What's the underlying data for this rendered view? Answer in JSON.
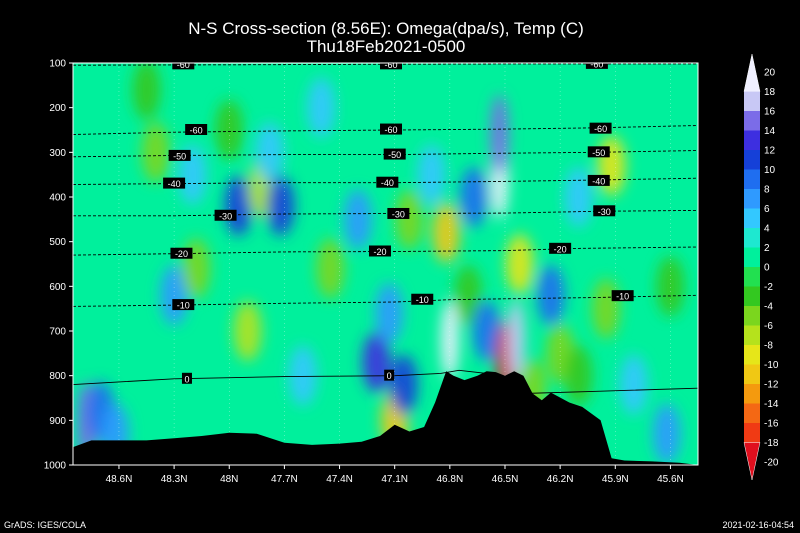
{
  "chart_data": {
    "type": "heatmap",
    "title": "N-S Cross-section (8.56E): Omega(dpa/s), Temp (C)",
    "subtitle": "Thu18Feb2021-0500",
    "xlabel": "",
    "ylabel": "",
    "x_ticks": [
      "48.6N",
      "48.3N",
      "48N",
      "47.7N",
      "47.4N",
      "47.1N",
      "46.8N",
      "46.5N",
      "46.2N",
      "45.9N",
      "45.6N"
    ],
    "x_range": [
      48.85,
      45.45
    ],
    "y_ticks": [
      100,
      200,
      300,
      400,
      500,
      600,
      700,
      800,
      900,
      1000
    ],
    "y_range": [
      100,
      1000
    ],
    "y_inverted": true,
    "grid": true,
    "colorbar": {
      "placement": "right",
      "levels": [
        20,
        18,
        16,
        14,
        12,
        10,
        8,
        6,
        4,
        2,
        0,
        -2,
        -4,
        -6,
        -8,
        -10,
        -12,
        -14,
        -16,
        -18,
        -20
      ],
      "colors": [
        "#f0f0ff",
        "#c8c8f5",
        "#7b6ce8",
        "#3d2fe0",
        "#1540d8",
        "#1f6ef0",
        "#2f9aff",
        "#33c8ff",
        "#1ee8d0",
        "#00f09c",
        "#22e050",
        "#33c820",
        "#7bd61e",
        "#b5e21c",
        "#e6e619",
        "#f0c814",
        "#f49a0e",
        "#f46814",
        "#f03a14",
        "#e00f1e"
      ]
    },
    "temperature_contours": [
      {
        "label": "-60",
        "level": -60,
        "points": [
          [
            48.85,
            105
          ],
          [
            48.0,
            104
          ],
          [
            47.2,
            103
          ],
          [
            46.4,
            102
          ],
          [
            45.6,
            102
          ],
          [
            45.45,
            102
          ]
        ]
      },
      {
        "label": "-60",
        "level": -60,
        "points": [
          [
            48.85,
            260
          ],
          [
            48.3,
            255
          ],
          [
            47.7,
            252
          ],
          [
            47.1,
            250
          ],
          [
            46.5,
            248
          ],
          [
            46.0,
            245
          ],
          [
            45.45,
            240
          ]
        ]
      },
      {
        "label": "-50",
        "level": -50,
        "points": [
          [
            48.85,
            310
          ],
          [
            48.3,
            307
          ],
          [
            47.7,
            305
          ],
          [
            47.1,
            305
          ],
          [
            46.5,
            302
          ],
          [
            46.0,
            300
          ],
          [
            45.45,
            296
          ]
        ]
      },
      {
        "label": "-40",
        "level": -40,
        "points": [
          [
            48.85,
            372
          ],
          [
            48.3,
            370
          ],
          [
            47.7,
            368
          ],
          [
            47.1,
            368
          ],
          [
            46.5,
            365
          ],
          [
            46.0,
            362
          ],
          [
            45.45,
            358
          ]
        ]
      },
      {
        "label": "-30",
        "level": -30,
        "points": [
          [
            48.85,
            442
          ],
          [
            48.3,
            442
          ],
          [
            47.7,
            438
          ],
          [
            47.1,
            437
          ],
          [
            46.5,
            436
          ],
          [
            46.0,
            432
          ],
          [
            45.45,
            430
          ]
        ]
      },
      {
        "label": "-20",
        "level": -20,
        "points": [
          [
            48.85,
            530
          ],
          [
            48.3,
            527
          ],
          [
            47.7,
            523
          ],
          [
            47.1,
            522
          ],
          [
            46.5,
            520
          ],
          [
            46.1,
            515
          ],
          [
            45.45,
            512
          ]
        ]
      },
      {
        "label": "-10",
        "level": -10,
        "points": [
          [
            48.85,
            645
          ],
          [
            48.3,
            642
          ],
          [
            47.7,
            638
          ],
          [
            47.1,
            635
          ],
          [
            46.8,
            630
          ],
          [
            46.5,
            628
          ],
          [
            46.0,
            625
          ],
          [
            45.45,
            620
          ]
        ]
      },
      {
        "label": "0",
        "level": 0,
        "points": [
          [
            48.85,
            820
          ],
          [
            48.3,
            807
          ],
          [
            47.7,
            802
          ],
          [
            47.1,
            800
          ],
          [
            46.85,
            795
          ],
          [
            46.75,
            788
          ],
          [
            46.6,
            795
          ],
          [
            46.4,
            840
          ],
          [
            46.0,
            835
          ],
          [
            45.45,
            828
          ]
        ]
      }
    ],
    "temperature_labels": [
      {
        "text": "-60",
        "x": 48.25,
        "y": 103
      },
      {
        "text": "-60",
        "x": 47.12,
        "y": 103
      },
      {
        "text": "-60",
        "x": 46.0,
        "y": 102
      },
      {
        "text": "-60",
        "x": 48.18,
        "y": 250
      },
      {
        "text": "-60",
        "x": 47.12,
        "y": 249
      },
      {
        "text": "-60",
        "x": 45.98,
        "y": 247
      },
      {
        "text": "-50",
        "x": 48.27,
        "y": 308
      },
      {
        "text": "-50",
        "x": 47.1,
        "y": 305
      },
      {
        "text": "-50",
        "x": 45.99,
        "y": 300
      },
      {
        "text": "-40",
        "x": 48.3,
        "y": 370
      },
      {
        "text": "-40",
        "x": 47.14,
        "y": 368
      },
      {
        "text": "-40",
        "x": 45.99,
        "y": 364
      },
      {
        "text": "-30",
        "x": 48.02,
        "y": 442
      },
      {
        "text": "-30",
        "x": 47.08,
        "y": 438
      },
      {
        "text": "-30",
        "x": 45.96,
        "y": 432
      },
      {
        "text": "-20",
        "x": 48.26,
        "y": 527
      },
      {
        "text": "-20",
        "x": 47.18,
        "y": 522
      },
      {
        "text": "-20",
        "x": 46.2,
        "y": 516
      },
      {
        "text": "-10",
        "x": 48.25,
        "y": 642
      },
      {
        "text": "-10",
        "x": 46.95,
        "y": 630
      },
      {
        "text": "-10",
        "x": 45.86,
        "y": 622
      },
      {
        "text": "0",
        "x": 48.23,
        "y": 807
      },
      {
        "text": "0",
        "x": 47.13,
        "y": 800
      }
    ],
    "omega_cells": [
      {
        "x": 48.78,
        "y": 905,
        "v": 14
      },
      {
        "x": 48.7,
        "y": 880,
        "v": 8
      },
      {
        "x": 48.62,
        "y": 930,
        "v": 6
      },
      {
        "x": 48.4,
        "y": 300,
        "v": -6
      },
      {
        "x": 48.45,
        "y": 160,
        "v": -4
      },
      {
        "x": 48.3,
        "y": 620,
        "v": 6
      },
      {
        "x": 48.2,
        "y": 350,
        "v": 4
      },
      {
        "x": 48.18,
        "y": 560,
        "v": -6
      },
      {
        "x": 48.0,
        "y": 250,
        "v": -4
      },
      {
        "x": 47.95,
        "y": 420,
        "v": 10
      },
      {
        "x": 47.9,
        "y": 700,
        "v": -8
      },
      {
        "x": 47.82,
        "y": 380,
        "v": -8
      },
      {
        "x": 47.78,
        "y": 300,
        "v": 4
      },
      {
        "x": 47.72,
        "y": 420,
        "v": 10
      },
      {
        "x": 47.6,
        "y": 800,
        "v": 4
      },
      {
        "x": 47.5,
        "y": 200,
        "v": 4
      },
      {
        "x": 47.45,
        "y": 560,
        "v": -6
      },
      {
        "x": 47.3,
        "y": 450,
        "v": 6
      },
      {
        "x": 47.2,
        "y": 770,
        "v": 12
      },
      {
        "x": 47.13,
        "y": 660,
        "v": 6
      },
      {
        "x": 47.1,
        "y": 900,
        "v": -12
      },
      {
        "x": 47.02,
        "y": 450,
        "v": -6
      },
      {
        "x": 46.9,
        "y": 350,
        "v": 4
      },
      {
        "x": 46.82,
        "y": 480,
        "v": -12
      },
      {
        "x": 46.8,
        "y": 720,
        "v": 18
      },
      {
        "x": 46.7,
        "y": 620,
        "v": -4
      },
      {
        "x": 46.67,
        "y": 400,
        "v": 8
      },
      {
        "x": 46.6,
        "y": 700,
        "v": 8
      },
      {
        "x": 46.53,
        "y": 360,
        "v": 20
      },
      {
        "x": 46.53,
        "y": 260,
        "v": 14
      },
      {
        "x": 46.5,
        "y": 770,
        "v": -20
      },
      {
        "x": 46.44,
        "y": 720,
        "v": 16
      },
      {
        "x": 46.42,
        "y": 550,
        "v": -10
      },
      {
        "x": 46.35,
        "y": 830,
        "v": -6
      },
      {
        "x": 46.25,
        "y": 620,
        "v": 8
      },
      {
        "x": 46.2,
        "y": 750,
        "v": -6
      },
      {
        "x": 46.1,
        "y": 400,
        "v": 4
      },
      {
        "x": 45.95,
        "y": 650,
        "v": -6
      },
      {
        "x": 45.92,
        "y": 330,
        "v": -10
      },
      {
        "x": 45.8,
        "y": 820,
        "v": 4
      },
      {
        "x": 45.62,
        "y": 930,
        "v": 6
      },
      {
        "x": 45.6,
        "y": 600,
        "v": -4
      },
      {
        "x": 46.1,
        "y": 800,
        "v": -4
      },
      {
        "x": 47.05,
        "y": 820,
        "v": 10
      }
    ],
    "terrain": [
      [
        48.85,
        960
      ],
      [
        48.75,
        945
      ],
      [
        48.6,
        945
      ],
      [
        48.45,
        945
      ],
      [
        48.3,
        940
      ],
      [
        48.15,
        935
      ],
      [
        48.0,
        928
      ],
      [
        47.85,
        930
      ],
      [
        47.7,
        950
      ],
      [
        47.55,
        955
      ],
      [
        47.4,
        952
      ],
      [
        47.28,
        948
      ],
      [
        47.18,
        935
      ],
      [
        47.1,
        910
      ],
      [
        47.02,
        925
      ],
      [
        46.94,
        915
      ],
      [
        46.88,
        860
      ],
      [
        46.82,
        790
      ],
      [
        46.78,
        800
      ],
      [
        46.72,
        810
      ],
      [
        46.65,
        800
      ],
      [
        46.6,
        790
      ],
      [
        46.55,
        792
      ],
      [
        46.5,
        800
      ],
      [
        46.45,
        790
      ],
      [
        46.4,
        800
      ],
      [
        46.35,
        840
      ],
      [
        46.3,
        855
      ],
      [
        46.25,
        838
      ],
      [
        46.15,
        860
      ],
      [
        46.08,
        870
      ],
      [
        45.98,
        900
      ],
      [
        45.92,
        985
      ],
      [
        45.85,
        990
      ],
      [
        45.7,
        992
      ],
      [
        45.55,
        995
      ],
      [
        45.45,
        1000
      ]
    ]
  },
  "footer": {
    "left": "GrADS: IGES/COLA",
    "right": "2021-02-16-04:54"
  }
}
